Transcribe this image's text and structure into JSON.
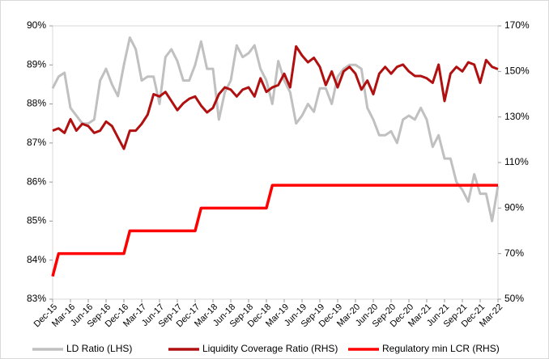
{
  "chart_data": {
    "type": "line",
    "categories": [
      "Dec-15",
      null,
      null,
      "Mar-16",
      null,
      null,
      "Jun-16",
      null,
      null,
      "Sep-16",
      null,
      null,
      "Dec-16",
      null,
      null,
      "Mar-17",
      null,
      null,
      "Jun-17",
      null,
      null,
      "Sep-17",
      null,
      null,
      "Dec-17",
      null,
      null,
      "Mar-18",
      null,
      null,
      "Jun-18",
      null,
      null,
      "Sep-18",
      null,
      null,
      "Dec-18",
      null,
      null,
      "Mar-19",
      null,
      null,
      "Jun-19",
      null,
      null,
      "Sep-19",
      null,
      null,
      "Dec-19",
      null,
      null,
      "Mar-20",
      null,
      null,
      "Jun-20",
      null,
      null,
      "Sep-20",
      null,
      null,
      "Dec-20",
      null,
      null,
      "Mar-21",
      null,
      null,
      "Jun-21",
      null,
      null,
      "Sep-21",
      null,
      null,
      "Dec-21",
      null,
      null,
      "Mar-22"
    ],
    "series": [
      {
        "name": "LD Ratio (LHS)",
        "color": "#c0c0c0",
        "axis": "y",
        "values": [
          88.4,
          88.7,
          88.8,
          87.9,
          87.7,
          87.5,
          87.5,
          87.6,
          88.6,
          88.9,
          88.5,
          88.2,
          89.0,
          89.7,
          89.4,
          88.6,
          88.7,
          88.7,
          88.0,
          89.2,
          89.4,
          89.1,
          88.6,
          88.6,
          89.0,
          89.6,
          88.9,
          88.9,
          87.6,
          88.3,
          88.6,
          89.5,
          89.2,
          89.3,
          89.5,
          88.9,
          88.6,
          88.0,
          89.1,
          88.6,
          88.3,
          87.5,
          87.7,
          88.0,
          87.8,
          88.4,
          88.4,
          88.0,
          88.7,
          88.9,
          89.0,
          89.0,
          88.9,
          87.9,
          87.6,
          87.2,
          87.2,
          87.3,
          87.0,
          87.6,
          87.7,
          87.6,
          87.9,
          87.6,
          86.9,
          87.2,
          86.6,
          86.6,
          86.0,
          85.8,
          85.5,
          86.2,
          85.7,
          85.7,
          85.0,
          85.9
        ]
      },
      {
        "name": "Liquidity Coverage Ratio (RHS)",
        "color": "#b01010",
        "axis": "y2",
        "values": [
          124,
          125,
          123,
          129,
          124,
          127,
          126,
          123,
          124,
          128,
          126,
          121,
          116,
          124,
          124,
          127,
          131,
          140,
          139,
          141,
          137,
          133,
          136,
          138,
          139,
          135,
          132,
          134,
          140,
          143,
          142,
          139,
          142,
          143,
          139,
          147,
          141,
          143,
          144,
          149,
          143,
          161,
          157,
          154,
          156,
          152,
          144,
          150,
          143,
          150,
          152,
          149,
          142,
          146,
          140,
          149,
          152,
          149,
          152,
          153,
          150,
          148,
          148,
          147,
          145,
          153,
          137,
          149,
          152,
          150,
          154,
          153,
          145,
          155,
          152,
          151
        ]
      },
      {
        "name": "Regulatory min LCR (RHS)",
        "color": "#ff0000",
        "axis": "y2",
        "values": [
          60,
          70,
          70,
          70,
          70,
          70,
          70,
          70,
          70,
          70,
          70,
          70,
          70,
          80,
          80,
          80,
          80,
          80,
          80,
          80,
          80,
          80,
          80,
          80,
          80,
          90,
          90,
          90,
          90,
          90,
          90,
          90,
          90,
          90,
          90,
          90,
          90,
          100,
          100,
          100,
          100,
          100,
          100,
          100,
          100,
          100,
          100,
          100,
          100,
          100,
          100,
          100,
          100,
          100,
          100,
          100,
          100,
          100,
          100,
          100,
          100,
          100,
          100,
          100,
          100,
          100,
          100,
          100,
          100,
          100,
          100,
          100,
          100,
          100,
          100,
          100
        ]
      }
    ],
    "ylim": [
      83,
      90
    ],
    "yticks": [
      {
        "value": 83,
        "label": "83%"
      },
      {
        "value": 84,
        "label": "84%"
      },
      {
        "value": 85,
        "label": "85%"
      },
      {
        "value": 86,
        "label": "86%"
      },
      {
        "value": 87,
        "label": "87%"
      },
      {
        "value": 88,
        "label": "88%"
      },
      {
        "value": 89,
        "label": "89%"
      },
      {
        "value": 90,
        "label": "90%"
      }
    ],
    "y2lim": [
      50,
      170
    ],
    "y2ticks": [
      {
        "value": 50,
        "label": "50%"
      },
      {
        "value": 70,
        "label": "70%"
      },
      {
        "value": 90,
        "label": "90%"
      },
      {
        "value": 110,
        "label": "110%"
      },
      {
        "value": 130,
        "label": "130%"
      },
      {
        "value": 150,
        "label": "150%"
      },
      {
        "value": 170,
        "label": "170%"
      }
    ],
    "grid": false,
    "legend": "bottom"
  }
}
